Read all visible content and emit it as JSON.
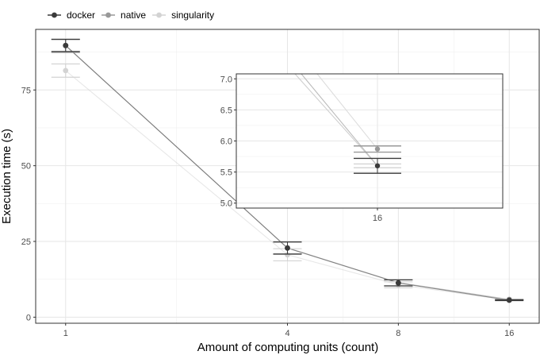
{
  "chart_data": {
    "type": "line",
    "xlabel": "Amount of computing units (count)",
    "ylabel": "Execution time (s)",
    "x_categories": [
      "1",
      "4",
      "8",
      "16"
    ],
    "x_positions": [
      1,
      4,
      8,
      16
    ],
    "x_scale": "log2",
    "ylim": [
      -2,
      95
    ],
    "y_ticks": [
      0,
      25,
      50,
      75
    ],
    "grid": true,
    "legend_position": "top-left",
    "series": [
      {
        "name": "docker",
        "color": "#3a3a3a",
        "values": [
          89.7,
          22.8,
          11.3,
          5.6
        ],
        "error": [
          2.0,
          2.0,
          1.0,
          0.12
        ]
      },
      {
        "name": "native",
        "color": "#999999",
        "values": [
          89.6,
          22.9,
          11.4,
          5.87
        ],
        "error": [
          2.2,
          2.0,
          1.0,
          0.05
        ]
      },
      {
        "name": "singularity",
        "color": "#d3d3d3",
        "values": [
          81.4,
          20.6,
          10.7,
          5.6
        ],
        "error": [
          2.2,
          2.0,
          1.0,
          0.03
        ]
      }
    ],
    "inset": {
      "x_categories": [
        "16"
      ],
      "ylim": [
        4.92,
        7.08
      ],
      "y_ticks": [
        "5.0",
        "5.5",
        "6.0",
        "6.5",
        "7.0"
      ],
      "y_tick_values": [
        5.0,
        5.5,
        6.0,
        6.5,
        7.0
      ],
      "series": [
        {
          "name": "docker",
          "value": 5.6,
          "error": 0.12
        },
        {
          "name": "native",
          "value": 5.87,
          "error": 0.05
        },
        {
          "name": "singularity",
          "value": 5.6,
          "error": 0.03
        }
      ]
    }
  }
}
